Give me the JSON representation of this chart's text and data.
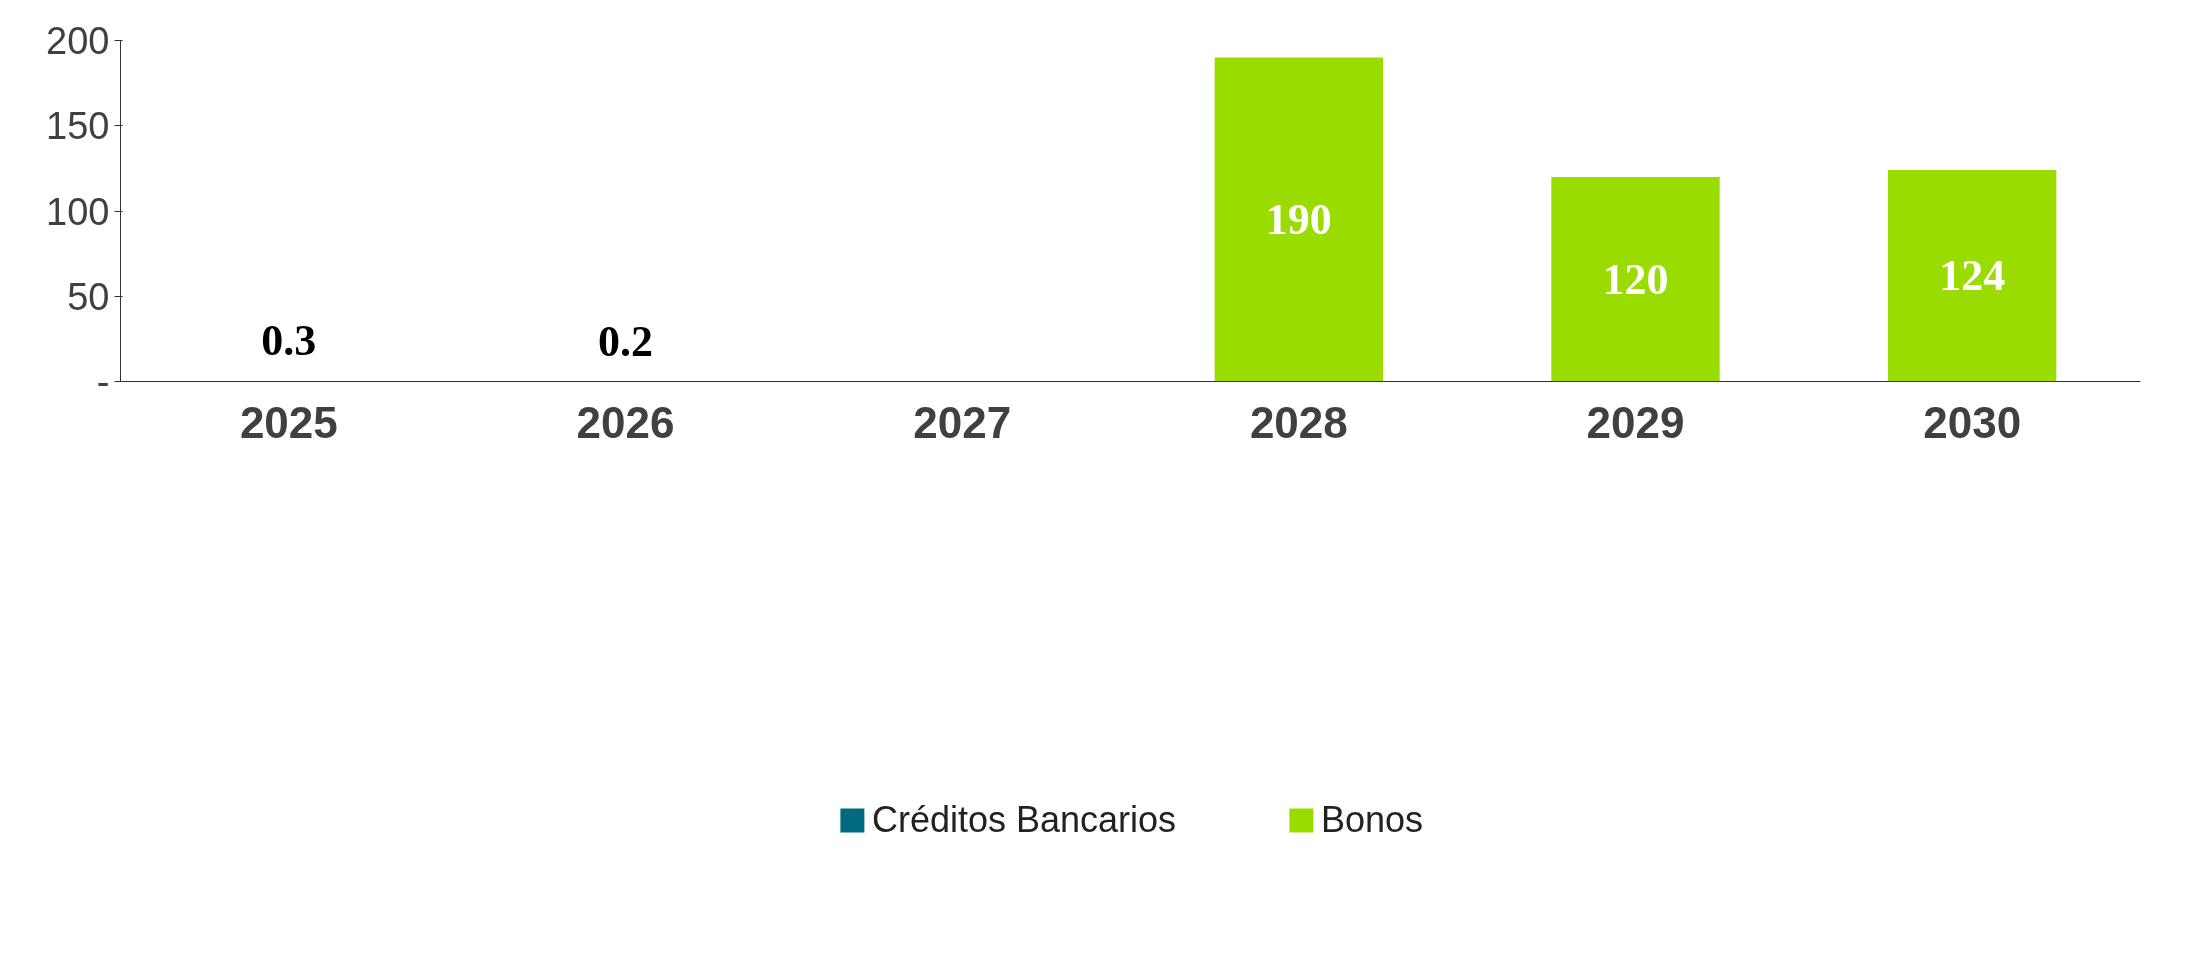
{
  "chart_data": {
    "type": "bar",
    "stacked": true,
    "categories": [
      "2025",
      "2026",
      "2027",
      "2028",
      "2029",
      "2030"
    ],
    "series": [
      {
        "name": "Créditos Bancarios",
        "color": "#006a80",
        "values": [
          0.3,
          0.2,
          null,
          null,
          null,
          null
        ]
      },
      {
        "name": "Bonos",
        "color": "#9bdc00",
        "values": [
          null,
          null,
          null,
          190,
          120,
          124
        ]
      }
    ],
    "ylim": [
      0,
      200
    ],
    "yticks": [
      {
        "value": 0,
        "label": "-"
      },
      50,
      100,
      150,
      200
    ],
    "grid": false,
    "legend": "bottom",
    "data_labels": true
  }
}
